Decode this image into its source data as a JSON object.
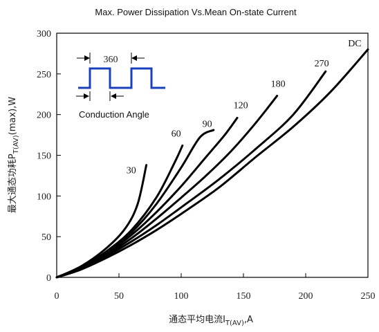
{
  "chart_data": {
    "type": "line",
    "title": "Max. Power Dissipation Vs.Mean On-state Current",
    "xlabel": {
      "main": "通态平均电流I",
      "sub": "T(AV)",
      "suffix": ",A"
    },
    "ylabel": {
      "main": "最大通态功耗P",
      "sub": "T(AV)",
      "suffix": "(max),W"
    },
    "xlim": [
      0,
      250
    ],
    "ylim": [
      0,
      300
    ],
    "xticks": [
      0,
      50,
      100,
      150,
      200,
      250
    ],
    "yticks": [
      0,
      50,
      100,
      150,
      200,
      250,
      300
    ],
    "grid": false,
    "inset": {
      "period_label": "360",
      "caption": "Conduction Angle"
    },
    "series": [
      {
        "name": "30",
        "points": [
          [
            0,
            0
          ],
          [
            20,
            14
          ],
          [
            40,
            36
          ],
          [
            55,
            60
          ],
          [
            65,
            90
          ],
          [
            72,
            138
          ]
        ],
        "label_at": [
          56,
          128
        ]
      },
      {
        "name": "60",
        "points": [
          [
            0,
            0
          ],
          [
            20,
            13
          ],
          [
            40,
            32
          ],
          [
            60,
            58
          ],
          [
            80,
            98
          ],
          [
            95,
            142
          ],
          [
            101,
            162
          ]
        ],
        "label_at": [
          92,
          173
        ]
      },
      {
        "name": "90",
        "points": [
          [
            0,
            0
          ],
          [
            20,
            12
          ],
          [
            40,
            30
          ],
          [
            60,
            55
          ],
          [
            80,
            90
          ],
          [
            100,
            135
          ],
          [
            115,
            172
          ],
          [
            126,
            181
          ]
        ],
        "label_at": [
          117,
          185
        ]
      },
      {
        "name": "120",
        "points": [
          [
            0,
            0
          ],
          [
            20,
            12
          ],
          [
            40,
            30
          ],
          [
            60,
            52
          ],
          [
            80,
            80
          ],
          [
            100,
            112
          ],
          [
            120,
            148
          ],
          [
            135,
            175
          ],
          [
            145,
            196
          ]
        ],
        "label_at": [
          142,
          208
        ]
      },
      {
        "name": "180",
        "points": [
          [
            0,
            0
          ],
          [
            20,
            11
          ],
          [
            40,
            28
          ],
          [
            60,
            48
          ],
          [
            80,
            72
          ],
          [
            100,
            98
          ],
          [
            120,
            125
          ],
          [
            140,
            155
          ],
          [
            160,
            190
          ],
          [
            177,
            223
          ]
        ],
        "label_at": [
          172,
          234
        ]
      },
      {
        "name": "270",
        "points": [
          [
            0,
            0
          ],
          [
            20,
            10
          ],
          [
            40,
            26
          ],
          [
            60,
            44
          ],
          [
            80,
            64
          ],
          [
            100,
            86
          ],
          [
            130,
            120
          ],
          [
            160,
            158
          ],
          [
            190,
            200
          ],
          [
            216,
            253
          ]
        ],
        "label_at": [
          207,
          259
        ]
      },
      {
        "name": "DC",
        "points": [
          [
            0,
            0
          ],
          [
            20,
            10
          ],
          [
            40,
            24
          ],
          [
            60,
            40
          ],
          [
            80,
            58
          ],
          [
            100,
            78
          ],
          [
            130,
            110
          ],
          [
            160,
            148
          ],
          [
            190,
            185
          ],
          [
            220,
            228
          ],
          [
            250,
            280
          ]
        ],
        "label_at": [
          234,
          284
        ]
      }
    ]
  }
}
